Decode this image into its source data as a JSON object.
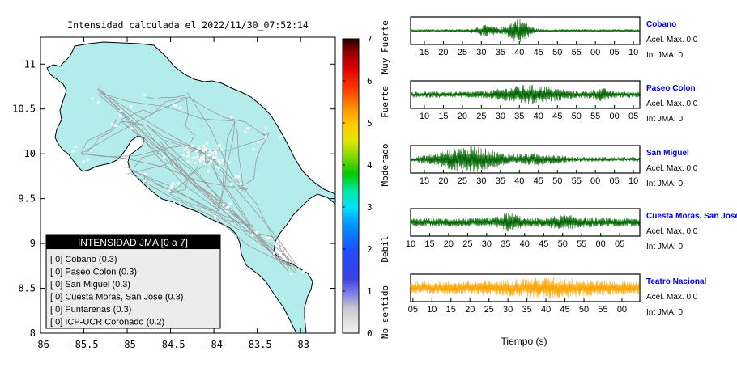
{
  "map": {
    "title": "Intensidad calculada el 2022/11/30_07:52:14",
    "x_ticks": [
      "-86",
      "-85.5",
      "-85",
      "-84.5",
      "-84",
      "-83.5",
      "-83"
    ],
    "y_ticks": [
      "11",
      "10.5",
      "10",
      "9.5",
      "9",
      "8.5",
      "8"
    ],
    "land_color": "#b4ecec"
  },
  "legend": {
    "header": "INTENSIDAD JMA [0 a 7]",
    "items": [
      "[ 0]  Cobano (0.3)",
      "[ 0]  Paseo Colon (0.3)",
      "[ 0]  San Miguel (0.3)",
      "[ 0]  Cuesta Moras, San Jose (0.3)",
      "[ 0]  Puntarenas (0.3)",
      "[ 0]  ICP-UCR Coronado (0.2)"
    ]
  },
  "colorbar": {
    "ticks": [
      "0",
      "1",
      "2",
      "3",
      "4",
      "5",
      "6",
      "7"
    ],
    "levels": [
      {
        "label": "No sentido",
        "center": 0.5
      },
      {
        "label": "Debil",
        "center": 2
      },
      {
        "label": "Moderado",
        "center": 4
      },
      {
        "label": "Fuerte",
        "center": 5.5
      },
      {
        "label": "Muy Fuerte",
        "center": 6.8
      }
    ],
    "stops": [
      [
        0.0,
        "#f4f4f4"
      ],
      [
        0.6,
        "#c8c8c8"
      ],
      [
        0.9,
        "#8a8ae6"
      ],
      [
        1.3,
        "#4040e0"
      ],
      [
        2.0,
        "#1e50ff"
      ],
      [
        2.6,
        "#0096ff"
      ],
      [
        3.0,
        "#00e1ff"
      ],
      [
        3.4,
        "#00e8a0"
      ],
      [
        3.8,
        "#00c800"
      ],
      [
        4.2,
        "#7fd800"
      ],
      [
        4.6,
        "#e6e600"
      ],
      [
        5.0,
        "#ffc800"
      ],
      [
        5.4,
        "#ff8c00"
      ],
      [
        5.8,
        "#ff3c00"
      ],
      [
        6.3,
        "#e00000"
      ],
      [
        6.7,
        "#900000"
      ],
      [
        7.0,
        "#2a0000"
      ]
    ]
  },
  "traces": [
    {
      "station": "Cobano",
      "accel": "Acel. Max. 0.0",
      "int": "Int JMA: 0",
      "color": "#006400",
      "ticks": [
        "15",
        "20",
        "25",
        "30",
        "35",
        "40",
        "45",
        "50",
        "55",
        "00",
        "05",
        "10"
      ],
      "first_tick_frac": 0.06
    },
    {
      "station": "Paseo Colon",
      "accel": "Acel. Max. 0.0",
      "int": "Int JMA: 0",
      "color": "#006400",
      "ticks": [
        "10",
        "15",
        "20",
        "25",
        "30",
        "35",
        "40",
        "45",
        "50",
        "55",
        "00",
        "05"
      ],
      "first_tick_frac": 0.06
    },
    {
      "station": "San Miguel",
      "accel": "Acel. Max. 0.0",
      "int": "Int JMA: 0",
      "color": "#006400",
      "ticks": [
        "15",
        "20",
        "25",
        "30",
        "35",
        "40",
        "45",
        "50",
        "55",
        "00",
        "05",
        "10"
      ],
      "first_tick_frac": 0.06
    },
    {
      "station": "Cuesta Moras, San Jose",
      "accel": "Acel. Max. 0.0",
      "int": "Int JMA: 0",
      "color": "#006400",
      "ticks": [
        "10",
        "15",
        "20",
        "25",
        "30",
        "35",
        "40",
        "45",
        "50",
        "55",
        "00",
        "05"
      ],
      "first_tick_frac": 0.0
    },
    {
      "station": "Teatro Nacional",
      "accel": "Acel. Max. 0.0",
      "int": "Int JMA: 0",
      "color": "#ffa500",
      "ticks": [
        "05",
        "10",
        "15",
        "20",
        "25",
        "30",
        "35",
        "40",
        "45",
        "50",
        "55",
        "00"
      ],
      "first_tick_frac": 0.01
    }
  ],
  "xlabel": "Tiempo (s)",
  "chart_data": {
    "type": "scatter",
    "title": "Intensidad calculada el 2022/11/30_07:52:14",
    "xlim": [
      -86,
      -82.6
    ],
    "ylim": [
      8,
      11.3
    ],
    "colorbar_range": [
      0,
      7
    ],
    "legend_placement": "bottom-left",
    "series": [
      {
        "name": "Cobano",
        "intensity": 0,
        "value": 0.3
      },
      {
        "name": "Paseo Colon",
        "intensity": 0,
        "value": 0.3
      },
      {
        "name": "San Miguel",
        "intensity": 0,
        "value": 0.3
      },
      {
        "name": "Cuesta Moras, San Jose",
        "intensity": 0,
        "value": 0.3
      },
      {
        "name": "Puntarenas",
        "intensity": 0,
        "value": 0.3
      },
      {
        "name": "ICP-UCR Coronado",
        "intensity": 0,
        "value": 0.2
      }
    ],
    "grid": false
  }
}
